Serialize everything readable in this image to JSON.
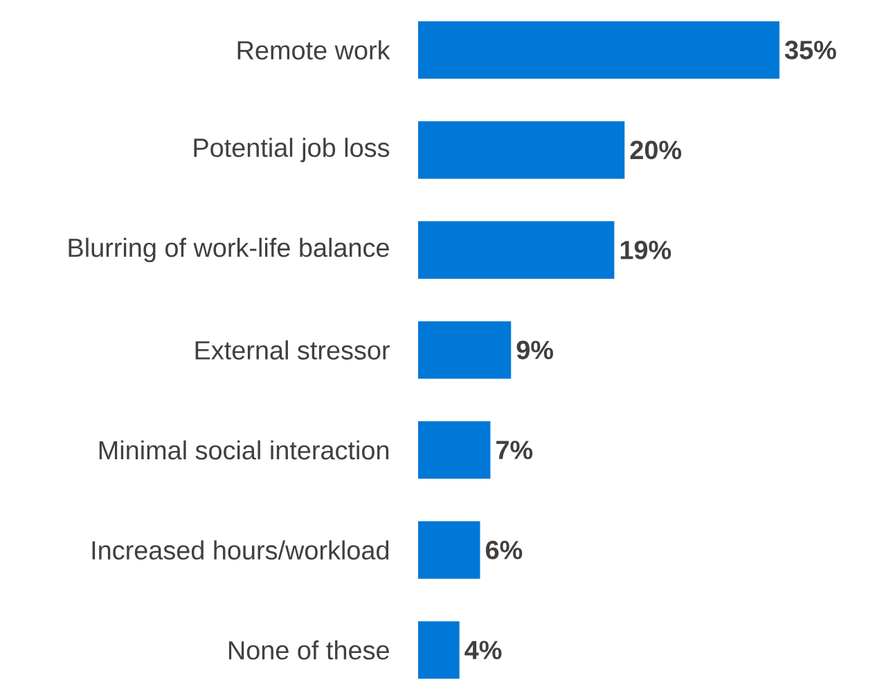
{
  "chart_data": {
    "type": "bar",
    "orientation": "horizontal",
    "categories": [
      "Remote work",
      "Potential job loss",
      "Blurring of work-life balance",
      "External stressor",
      "Minimal social interaction",
      "Increased hours/workload",
      "None of these"
    ],
    "values": [
      35,
      20,
      19,
      9,
      7,
      6,
      4
    ],
    "value_labels": [
      "35%",
      "20%",
      "19%",
      "9%",
      "7%",
      "6%",
      "4%"
    ],
    "color": "#0078d7"
  }
}
